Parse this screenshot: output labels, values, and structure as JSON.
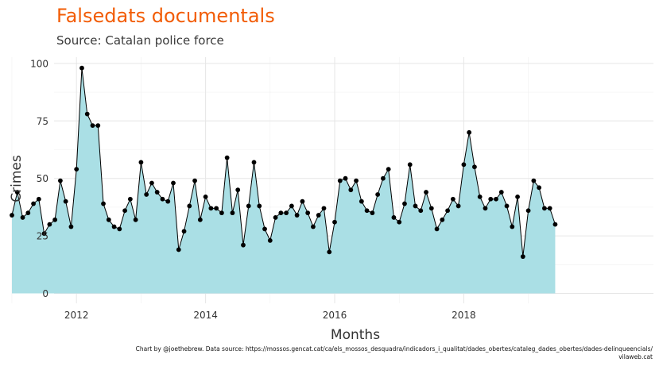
{
  "chart_data": {
    "type": "area",
    "title": "Falsedats documentals",
    "subtitle": "Source: Catalan police force",
    "xlabel": "Months",
    "ylabel": "Crimes",
    "caption": "Chart by @joethebrew. Data source: https://mossos.gencat.cat/ca/els_mossos_desquadra/indicadors_i_qualitat/dades_obertes/cataleg_dades_obertes/dades-delinqueencials/\nvilaweb.cat",
    "start": "2011-01",
    "x_ticks": [
      "2012",
      "2014",
      "2016",
      "2018"
    ],
    "y_ticks": [
      0,
      25,
      50,
      75,
      100
    ],
    "ylim": [
      0,
      100
    ],
    "grid": true,
    "colors": {
      "title": "#f25c05",
      "area": "#aadfe5",
      "line": "#000000",
      "grid": "#e6e6e6"
    },
    "series": [
      {
        "values": [
          34,
          44,
          33,
          35,
          39,
          41,
          26,
          30,
          32,
          49,
          40,
          29,
          54,
          98,
          78,
          73,
          73,
          39,
          32,
          29,
          28,
          36,
          41,
          32,
          57,
          43,
          48,
          44,
          41,
          40,
          48,
          19,
          27,
          38,
          49,
          32,
          42,
          37,
          37,
          35,
          59,
          35,
          45,
          21,
          38,
          57,
          38,
          28,
          23,
          33,
          35,
          35,
          38,
          34,
          40,
          35,
          29,
          34,
          37,
          18,
          31,
          49,
          50,
          45,
          49,
          40,
          36,
          35,
          43,
          50,
          54,
          33,
          31,
          39,
          56,
          38,
          36,
          44,
          37,
          28,
          32,
          36,
          41,
          38,
          56,
          70,
          55,
          42,
          37,
          41,
          41,
          44,
          38,
          29,
          42,
          16,
          36,
          49,
          46,
          37,
          37,
          30
        ]
      }
    ]
  }
}
